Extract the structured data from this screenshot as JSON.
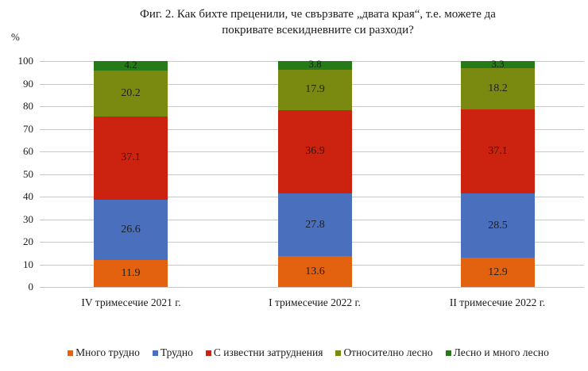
{
  "title": {
    "line1": "Фиг. 2. Как бихте преценили,  че свързвате „двата края“, т.е. можете да",
    "line2": "покривате всекидневните си разходи?"
  },
  "y_unit": "%",
  "y_ticks": [
    "0",
    "10",
    "20",
    "30",
    "40",
    "50",
    "60",
    "70",
    "80",
    "90",
    "100"
  ],
  "colors": {
    "many_difficult": "#e2620f",
    "difficult": "#4a6fbd",
    "some_difficulties": "#cc2310",
    "relatively_easy": "#7a8a10",
    "easy": "#267a18"
  },
  "legend": [
    {
      "label": "Много трудно",
      "color": "#e2620f"
    },
    {
      "label": "Трудно",
      "color": "#4a6fbd"
    },
    {
      "label": "С известни затруднения",
      "color": "#cc2310"
    },
    {
      "label": "Относително лесно",
      "color": "#7a8a10"
    },
    {
      "label": "Лесно и много лесно",
      "color": "#267a18"
    }
  ],
  "bars": [
    {
      "label": "IV тримесечие 2021 г.",
      "values": [
        "11.9",
        "26.6",
        "37.1",
        "20.2",
        "4.2"
      ]
    },
    {
      "label": "I тримесечие 2022 г.",
      "values": [
        "13.6",
        "27.8",
        "36.9",
        "17.9",
        "3.8"
      ]
    },
    {
      "label": "II тримесечие 2022 г.",
      "values": [
        "12.9",
        "28.5",
        "37.1",
        "18.2",
        "3.3"
      ]
    }
  ],
  "chart_data": {
    "type": "bar",
    "stacked": true,
    "title": "Фиг. 2. Как бихте преценили,  че свързвате „двата края“, т.е. можете да покривате всекидневните си разходи?",
    "xlabel": "",
    "ylabel": "%",
    "ylim": [
      0,
      100
    ],
    "yticks": [
      0,
      10,
      20,
      30,
      40,
      50,
      60,
      70,
      80,
      90,
      100
    ],
    "grid": true,
    "legend_position": "bottom",
    "categories": [
      "IV тримесечие 2021 г.",
      "I тримесечие 2022 г.",
      "II тримесечие 2022 г."
    ],
    "series": [
      {
        "name": "Много трудно",
        "color": "#e2620f",
        "values": [
          11.9,
          13.6,
          12.9
        ]
      },
      {
        "name": "Трудно",
        "color": "#4a6fbd",
        "values": [
          26.6,
          27.8,
          28.5
        ]
      },
      {
        "name": "С известни затруднения",
        "color": "#cc2310",
        "values": [
          37.1,
          36.9,
          37.1
        ]
      },
      {
        "name": "Относително лесно",
        "color": "#7a8a10",
        "values": [
          20.2,
          17.9,
          18.2
        ]
      },
      {
        "name": "Лесно и много лесно",
        "color": "#267a18",
        "values": [
          4.2,
          3.8,
          3.3
        ]
      }
    ]
  }
}
